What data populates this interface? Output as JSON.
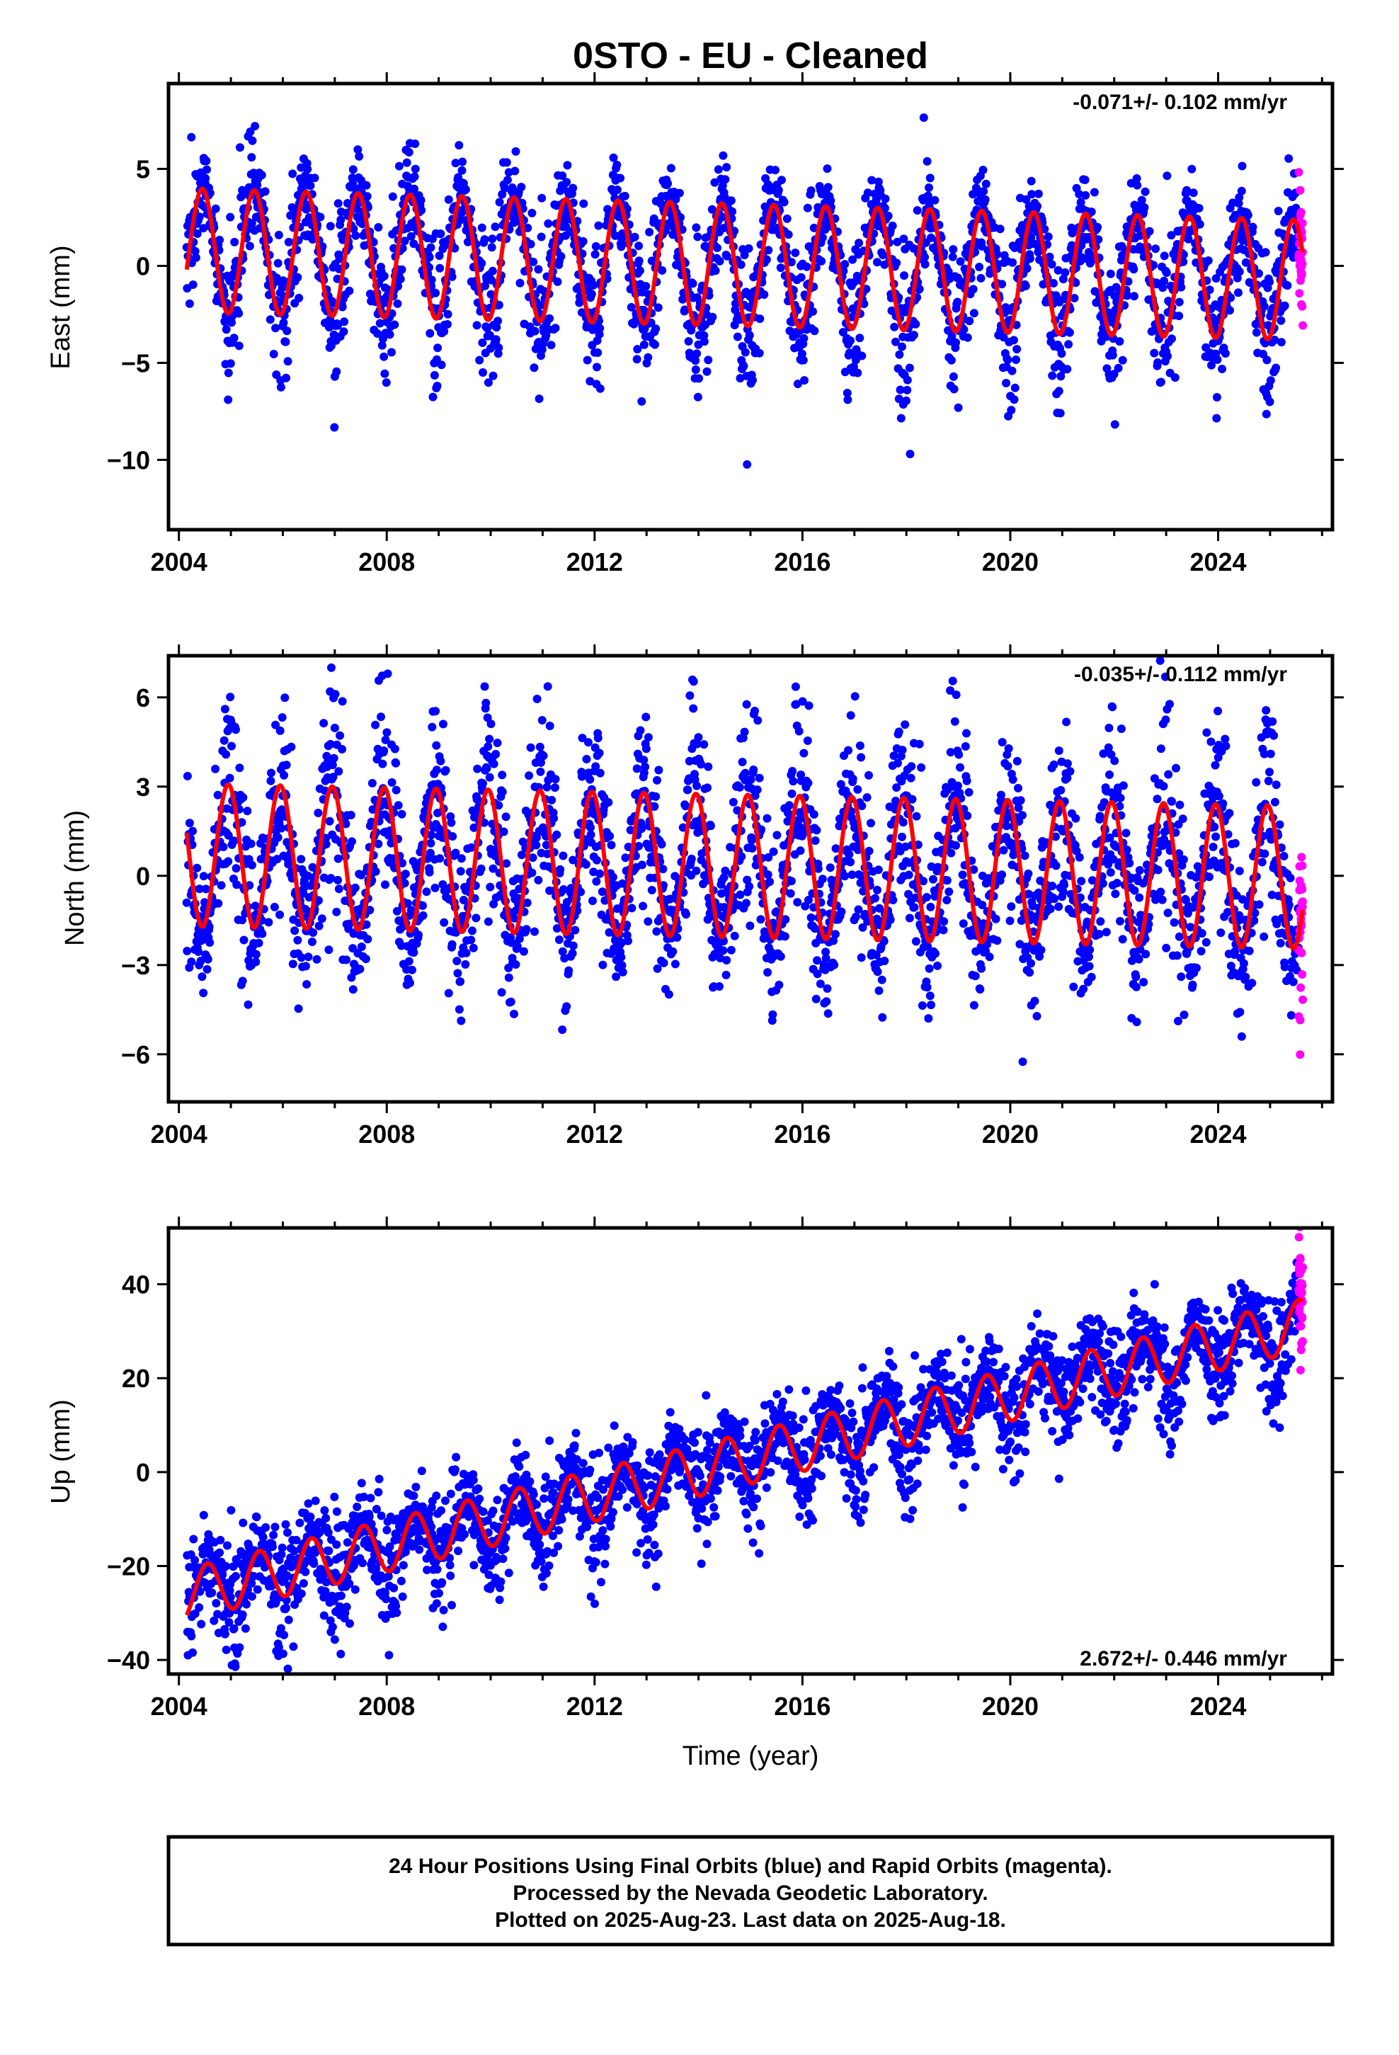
{
  "page_title": "0STO  - EU - Cleaned",
  "colors": {
    "final_orbits": "#0000ff",
    "rapid_orbits": "#ff00ff",
    "model_fit": "#ff0000",
    "frame": "#000000"
  },
  "x_axis": {
    "ticks": [
      "2004",
      "2008",
      "2012",
      "2016",
      "2020",
      "2024"
    ],
    "label": "Time (year)"
  },
  "footer": {
    "line1": "24 Hour Positions Using Final Orbits (blue) and Rapid Orbits (magenta).",
    "line2": "Processed by the Nevada Geodetic Laboratory.",
    "line3": "Plotted on 2025-Aug-23. Last data on 2025-Aug-18."
  },
  "panels": [
    {
      "ylabel": "East (mm)",
      "rate": "-0.071+/- 0.102 mm/yr",
      "yticks": [
        "5",
        "0",
        "−5",
        "−10"
      ]
    },
    {
      "ylabel": "North (mm)",
      "rate": "-0.035+/- 0.112 mm/yr",
      "yticks": [
        "6",
        "3",
        "0",
        "−3",
        "−6"
      ]
    },
    {
      "ylabel": "Up (mm)",
      "rate": "2.672+/- 0.446 mm/yr",
      "yticks": [
        "40",
        "20",
        "0",
        "−20",
        "−40"
      ]
    }
  ],
  "chart_data": [
    {
      "type": "scatter",
      "component": "East",
      "ylabel": "East (mm)",
      "xlabel": "",
      "xlim": [
        2003.8,
        2026.2
      ],
      "ylim": [
        -13.6,
        9.4
      ],
      "yticks": [
        5,
        0,
        -5,
        -10
      ],
      "xticks": [
        2004,
        2008,
        2012,
        2016,
        2020,
        2024
      ],
      "rate_text": "-0.071+/- 0.102 mm/yr",
      "start": 2004.15,
      "final_end": 2025.55,
      "rapid_end": 2025.63,
      "model": {
        "offset": 0.8,
        "trend": -0.071,
        "amplitude_start": 3.2,
        "amplitude_end": 3.1,
        "annual_phase_peak": 0.45
      },
      "scatter_sigma": 1.6,
      "series": [
        {
          "color": "#0000ff",
          "x_range": [
            2004.15,
            2025.55
          ]
        },
        {
          "color": "#ff00ff",
          "x_range": [
            2025.55,
            2025.63
          ]
        },
        {
          "color": "#ff0000",
          "x_range": [
            2004.15,
            2025.63
          ]
        }
      ]
    },
    {
      "type": "scatter",
      "component": "North",
      "ylabel": "North (mm)",
      "xlabel": "",
      "xlim": [
        2003.8,
        2026.2
      ],
      "ylim": [
        -7.6,
        7.4
      ],
      "yticks": [
        6,
        3,
        0,
        -3,
        -6
      ],
      "xticks": [
        2004,
        2008,
        2012,
        2016,
        2020,
        2024
      ],
      "rate_text": "-0.035+/- 0.112 mm/yr",
      "start": 2004.15,
      "final_end": 2025.55,
      "rapid_end": 2025.63,
      "model": {
        "offset": 0.7,
        "trend": -0.035,
        "amplitude_start": 2.4,
        "amplitude_end": 2.4,
        "annual_phase_peak": 0.95
      },
      "scatter_sigma": 1.5,
      "series": [
        {
          "color": "#0000ff",
          "x_range": [
            2004.15,
            2025.55
          ]
        },
        {
          "color": "#ff00ff",
          "x_range": [
            2025.55,
            2025.63
          ]
        },
        {
          "color": "#ff0000",
          "x_range": [
            2004.15,
            2025.63
          ]
        }
      ]
    },
    {
      "type": "scatter",
      "component": "Up",
      "ylabel": "Up (mm)",
      "xlabel": "Time (year)",
      "xlim": [
        2003.8,
        2026.2
      ],
      "ylim": [
        -43,
        52
      ],
      "yticks": [
        40,
        20,
        0,
        -20,
        -40
      ],
      "xticks": [
        2004,
        2008,
        2012,
        2016,
        2020,
        2024
      ],
      "rate_text": "2.672+/- 0.446 mm/yr",
      "start": 2004.15,
      "final_end": 2025.55,
      "rapid_end": 2025.63,
      "model": {
        "offset": -26.0,
        "trend": 2.672,
        "amplitude_start": 5.5,
        "amplitude_end": 5.5,
        "annual_phase_peak": 0.55
      },
      "scatter_sigma": 5.5,
      "series": [
        {
          "color": "#0000ff",
          "x_range": [
            2004.15,
            2025.55
          ]
        },
        {
          "color": "#ff00ff",
          "x_range": [
            2025.55,
            2025.63
          ]
        },
        {
          "color": "#ff0000",
          "x_range": [
            2004.15,
            2025.63
          ]
        }
      ]
    }
  ]
}
